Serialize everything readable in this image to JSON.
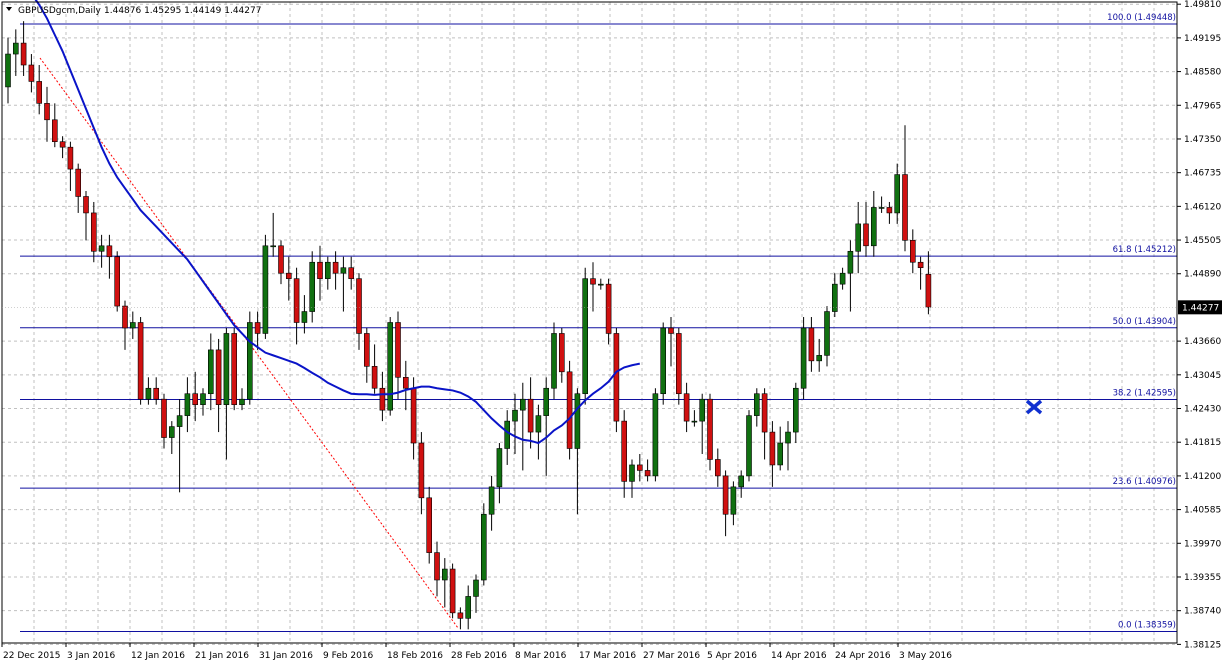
{
  "chart_data": {
    "type": "candlestick",
    "header": {
      "symbol": "GBPUSDgcm,Daily",
      "ohlc": "1.44876 1.45295 1.44149 1.44277"
    },
    "y_range": [
      1.3815,
      1.4985
    ],
    "y_ticks": [
      "1.49810",
      "1.49195",
      "1.48580",
      "1.47965",
      "1.47350",
      "1.46735",
      "1.46120",
      "1.45505",
      "1.44890",
      "1.43660",
      "1.43045",
      "1.42430",
      "1.41815",
      "1.41200",
      "1.40585",
      "1.39970",
      "1.39355",
      "1.38740",
      "1.38125"
    ],
    "current_price_label": "1.44277",
    "x_labels": [
      "22 Dec 2015",
      "3 Jan 2016",
      "12 Jan 2016",
      "21 Jan 2016",
      "31 Jan 2016",
      "9 Feb 2016",
      "18 Feb 2016",
      "28 Feb 2016",
      "8 Mar 2016",
      "17 Mar 2016",
      "27 Mar 2016",
      "5 Apr 2016",
      "14 Apr 2016",
      "24 Apr 2016",
      "3 May 2016"
    ],
    "fib_levels": [
      {
        "label": "100.0  (1.49448)",
        "price": 1.49448
      },
      {
        "label": "61.8  (1.45212)",
        "price": 1.45212
      },
      {
        "label": "50.0  (1.43904)",
        "price": 1.43904
      },
      {
        "label": "38.2  (1.42595)",
        "price": 1.42595
      },
      {
        "label": "23.6  (1.40976)",
        "price": 1.40976
      },
      {
        "label": "0.0  (1.38359)",
        "price": 1.38359
      }
    ],
    "candles": [
      {
        "o": 1.483,
        "h": 1.492,
        "l": 1.48,
        "c": 1.489
      },
      {
        "o": 1.489,
        "h": 1.4935,
        "l": 1.485,
        "c": 1.491
      },
      {
        "o": 1.491,
        "h": 1.495,
        "l": 1.485,
        "c": 1.487
      },
      {
        "o": 1.487,
        "h": 1.489,
        "l": 1.482,
        "c": 1.484
      },
      {
        "o": 1.484,
        "h": 1.487,
        "l": 1.478,
        "c": 1.48
      },
      {
        "o": 1.48,
        "h": 1.483,
        "l": 1.473,
        "c": 1.477
      },
      {
        "o": 1.477,
        "h": 1.48,
        "l": 1.472,
        "c": 1.473
      },
      {
        "o": 1.473,
        "h": 1.474,
        "l": 1.47,
        "c": 1.472
      },
      {
        "o": 1.472,
        "h": 1.473,
        "l": 1.464,
        "c": 1.468
      },
      {
        "o": 1.468,
        "h": 1.469,
        "l": 1.46,
        "c": 1.463
      },
      {
        "o": 1.463,
        "h": 1.464,
        "l": 1.455,
        "c": 1.46
      },
      {
        "o": 1.46,
        "h": 1.462,
        "l": 1.451,
        "c": 1.453
      },
      {
        "o": 1.453,
        "h": 1.456,
        "l": 1.45,
        "c": 1.454
      },
      {
        "o": 1.454,
        "h": 1.456,
        "l": 1.448,
        "c": 1.452
      },
      {
        "o": 1.452,
        "h": 1.453,
        "l": 1.442,
        "c": 1.443
      },
      {
        "o": 1.443,
        "h": 1.444,
        "l": 1.435,
        "c": 1.439
      },
      {
        "o": 1.439,
        "h": 1.442,
        "l": 1.437,
        "c": 1.44
      },
      {
        "o": 1.44,
        "h": 1.441,
        "l": 1.425,
        "c": 1.426
      },
      {
        "o": 1.426,
        "h": 1.43,
        "l": 1.425,
        "c": 1.428
      },
      {
        "o": 1.428,
        "h": 1.43,
        "l": 1.425,
        "c": 1.426
      },
      {
        "o": 1.426,
        "h": 1.427,
        "l": 1.417,
        "c": 1.419
      },
      {
        "o": 1.419,
        "h": 1.422,
        "l": 1.416,
        "c": 1.421
      },
      {
        "o": 1.421,
        "h": 1.426,
        "l": 1.409,
        "c": 1.423
      },
      {
        "o": 1.423,
        "h": 1.43,
        "l": 1.42,
        "c": 1.427
      },
      {
        "o": 1.427,
        "h": 1.431,
        "l": 1.422,
        "c": 1.425
      },
      {
        "o": 1.425,
        "h": 1.428,
        "l": 1.423,
        "c": 1.427
      },
      {
        "o": 1.427,
        "h": 1.438,
        "l": 1.424,
        "c": 1.435
      },
      {
        "o": 1.435,
        "h": 1.437,
        "l": 1.42,
        "c": 1.425
      },
      {
        "o": 1.425,
        "h": 1.439,
        "l": 1.415,
        "c": 1.438
      },
      {
        "o": 1.438,
        "h": 1.439,
        "l": 1.424,
        "c": 1.425
      },
      {
        "o": 1.425,
        "h": 1.428,
        "l": 1.424,
        "c": 1.426
      },
      {
        "o": 1.426,
        "h": 1.442,
        "l": 1.425,
        "c": 1.44
      },
      {
        "o": 1.44,
        "h": 1.442,
        "l": 1.435,
        "c": 1.438
      },
      {
        "o": 1.438,
        "h": 1.456,
        "l": 1.437,
        "c": 1.454
      },
      {
        "o": 1.454,
        "h": 1.46,
        "l": 1.452,
        "c": 1.454
      },
      {
        "o": 1.454,
        "h": 1.455,
        "l": 1.447,
        "c": 1.449
      },
      {
        "o": 1.449,
        "h": 1.452,
        "l": 1.444,
        "c": 1.448
      },
      {
        "o": 1.448,
        "h": 1.45,
        "l": 1.436,
        "c": 1.44
      },
      {
        "o": 1.44,
        "h": 1.445,
        "l": 1.438,
        "c": 1.442
      },
      {
        "o": 1.442,
        "h": 1.453,
        "l": 1.44,
        "c": 1.451
      },
      {
        "o": 1.451,
        "h": 1.454,
        "l": 1.444,
        "c": 1.448
      },
      {
        "o": 1.448,
        "h": 1.452,
        "l": 1.446,
        "c": 1.451
      },
      {
        "o": 1.451,
        "h": 1.453,
        "l": 1.446,
        "c": 1.449
      },
      {
        "o": 1.449,
        "h": 1.452,
        "l": 1.442,
        "c": 1.45
      },
      {
        "o": 1.45,
        "h": 1.452,
        "l": 1.446,
        "c": 1.448
      },
      {
        "o": 1.448,
        "h": 1.449,
        "l": 1.435,
        "c": 1.438
      },
      {
        "o": 1.438,
        "h": 1.439,
        "l": 1.429,
        "c": 1.432
      },
      {
        "o": 1.432,
        "h": 1.436,
        "l": 1.427,
        "c": 1.428
      },
      {
        "o": 1.428,
        "h": 1.431,
        "l": 1.422,
        "c": 1.424
      },
      {
        "o": 1.424,
        "h": 1.441,
        "l": 1.423,
        "c": 1.44
      },
      {
        "o": 1.44,
        "h": 1.442,
        "l": 1.426,
        "c": 1.43
      },
      {
        "o": 1.43,
        "h": 1.433,
        "l": 1.424,
        "c": 1.428
      },
      {
        "o": 1.428,
        "h": 1.43,
        "l": 1.415,
        "c": 1.418
      },
      {
        "o": 1.418,
        "h": 1.42,
        "l": 1.405,
        "c": 1.408
      },
      {
        "o": 1.408,
        "h": 1.41,
        "l": 1.396,
        "c": 1.398
      },
      {
        "o": 1.398,
        "h": 1.4,
        "l": 1.39,
        "c": 1.393
      },
      {
        "o": 1.393,
        "h": 1.397,
        "l": 1.388,
        "c": 1.395
      },
      {
        "o": 1.395,
        "h": 1.396,
        "l": 1.386,
        "c": 1.387
      },
      {
        "o": 1.387,
        "h": 1.388,
        "l": 1.384,
        "c": 1.386
      },
      {
        "o": 1.386,
        "h": 1.392,
        "l": 1.384,
        "c": 1.39
      },
      {
        "o": 1.39,
        "h": 1.394,
        "l": 1.387,
        "c": 1.393
      },
      {
        "o": 1.393,
        "h": 1.407,
        "l": 1.392,
        "c": 1.405
      },
      {
        "o": 1.405,
        "h": 1.412,
        "l": 1.402,
        "c": 1.41
      },
      {
        "o": 1.41,
        "h": 1.418,
        "l": 1.407,
        "c": 1.417
      },
      {
        "o": 1.417,
        "h": 1.424,
        "l": 1.414,
        "c": 1.422
      },
      {
        "o": 1.422,
        "h": 1.427,
        "l": 1.416,
        "c": 1.424
      },
      {
        "o": 1.424,
        "h": 1.429,
        "l": 1.413,
        "c": 1.426
      },
      {
        "o": 1.426,
        "h": 1.43,
        "l": 1.417,
        "c": 1.42
      },
      {
        "o": 1.42,
        "h": 1.425,
        "l": 1.415,
        "c": 1.423
      },
      {
        "o": 1.423,
        "h": 1.43,
        "l": 1.412,
        "c": 1.428
      },
      {
        "o": 1.428,
        "h": 1.44,
        "l": 1.426,
        "c": 1.438
      },
      {
        "o": 1.438,
        "h": 1.439,
        "l": 1.429,
        "c": 1.431
      },
      {
        "o": 1.431,
        "h": 1.433,
        "l": 1.415,
        "c": 1.417
      },
      {
        "o": 1.417,
        "h": 1.428,
        "l": 1.405,
        "c": 1.427
      },
      {
        "o": 1.427,
        "h": 1.45,
        "l": 1.425,
        "c": 1.448
      },
      {
        "o": 1.448,
        "h": 1.451,
        "l": 1.442,
        "c": 1.447
      },
      {
        "o": 1.447,
        "h": 1.448,
        "l": 1.446,
        "c": 1.447
      },
      {
        "o": 1.447,
        "h": 1.448,
        "l": 1.436,
        "c": 1.438
      },
      {
        "o": 1.438,
        "h": 1.439,
        "l": 1.42,
        "c": 1.422
      },
      {
        "o": 1.422,
        "h": 1.424,
        "l": 1.408,
        "c": 1.411
      },
      {
        "o": 1.411,
        "h": 1.415,
        "l": 1.408,
        "c": 1.414
      },
      {
        "o": 1.414,
        "h": 1.416,
        "l": 1.411,
        "c": 1.413
      },
      {
        "o": 1.413,
        "h": 1.415,
        "l": 1.411,
        "c": 1.412
      },
      {
        "o": 1.412,
        "h": 1.428,
        "l": 1.411,
        "c": 1.427
      },
      {
        "o": 1.427,
        "h": 1.44,
        "l": 1.425,
        "c": 1.439
      },
      {
        "o": 1.439,
        "h": 1.441,
        "l": 1.432,
        "c": 1.438
      },
      {
        "o": 1.438,
        "h": 1.439,
        "l": 1.425,
        "c": 1.427
      },
      {
        "o": 1.427,
        "h": 1.429,
        "l": 1.42,
        "c": 1.422
      },
      {
        "o": 1.422,
        "h": 1.424,
        "l": 1.421,
        "c": 1.422
      },
      {
        "o": 1.422,
        "h": 1.427,
        "l": 1.416,
        "c": 1.426
      },
      {
        "o": 1.426,
        "h": 1.427,
        "l": 1.413,
        "c": 1.415
      },
      {
        "o": 1.415,
        "h": 1.417,
        "l": 1.41,
        "c": 1.412
      },
      {
        "o": 1.412,
        "h": 1.413,
        "l": 1.401,
        "c": 1.405
      },
      {
        "o": 1.405,
        "h": 1.411,
        "l": 1.403,
        "c": 1.41
      },
      {
        "o": 1.41,
        "h": 1.413,
        "l": 1.408,
        "c": 1.412
      },
      {
        "o": 1.412,
        "h": 1.424,
        "l": 1.411,
        "c": 1.423
      },
      {
        "o": 1.423,
        "h": 1.428,
        "l": 1.421,
        "c": 1.427
      },
      {
        "o": 1.427,
        "h": 1.428,
        "l": 1.415,
        "c": 1.42
      },
      {
        "o": 1.42,
        "h": 1.422,
        "l": 1.41,
        "c": 1.414
      },
      {
        "o": 1.414,
        "h": 1.421,
        "l": 1.413,
        "c": 1.418
      },
      {
        "o": 1.418,
        "h": 1.422,
        "l": 1.413,
        "c": 1.42
      },
      {
        "o": 1.42,
        "h": 1.429,
        "l": 1.418,
        "c": 1.428
      },
      {
        "o": 1.428,
        "h": 1.441,
        "l": 1.426,
        "c": 1.439
      },
      {
        "o": 1.439,
        "h": 1.441,
        "l": 1.431,
        "c": 1.433
      },
      {
        "o": 1.433,
        "h": 1.437,
        "l": 1.431,
        "c": 1.434
      },
      {
        "o": 1.434,
        "h": 1.443,
        "l": 1.432,
        "c": 1.442
      },
      {
        "o": 1.442,
        "h": 1.449,
        "l": 1.441,
        "c": 1.447
      },
      {
        "o": 1.447,
        "h": 1.45,
        "l": 1.446,
        "c": 1.449
      },
      {
        "o": 1.449,
        "h": 1.455,
        "l": 1.442,
        "c": 1.453
      },
      {
        "o": 1.453,
        "h": 1.462,
        "l": 1.449,
        "c": 1.458
      },
      {
        "o": 1.458,
        "h": 1.462,
        "l": 1.452,
        "c": 1.454
      },
      {
        "o": 1.454,
        "h": 1.464,
        "l": 1.452,
        "c": 1.461
      },
      {
        "o": 1.461,
        "h": 1.463,
        "l": 1.46,
        "c": 1.461
      },
      {
        "o": 1.461,
        "h": 1.462,
        "l": 1.458,
        "c": 1.46
      },
      {
        "o": 1.46,
        "h": 1.469,
        "l": 1.458,
        "c": 1.467
      },
      {
        "o": 1.467,
        "h": 1.476,
        "l": 1.453,
        "c": 1.455
      },
      {
        "o": 1.455,
        "h": 1.457,
        "l": 1.449,
        "c": 1.451
      },
      {
        "o": 1.451,
        "h": 1.452,
        "l": 1.446,
        "c": 1.45
      },
      {
        "o": 1.4488,
        "h": 1.453,
        "l": 1.4415,
        "c": 1.4428
      }
    ],
    "ma": [
      1.503,
      1.502,
      1.501,
      1.5,
      1.498,
      1.4955,
      1.4925,
      1.4895,
      1.486,
      1.4825,
      1.479,
      1.4755,
      1.472,
      1.469,
      1.4665,
      1.4645,
      1.4625,
      1.4605,
      1.459,
      1.4575,
      1.456,
      1.4545,
      1.453,
      1.4515,
      1.4495,
      1.4475,
      1.4455,
      1.4435,
      1.4415,
      1.4395,
      1.438,
      1.4365,
      1.4355,
      1.4345,
      1.434,
      1.4335,
      1.433,
      1.4325,
      1.4317,
      1.4308,
      1.43,
      1.429,
      1.4283,
      1.4276,
      1.427,
      1.4269,
      1.4269,
      1.4268,
      1.4269,
      1.4269,
      1.4272,
      1.4277,
      1.428,
      1.4283,
      1.4283,
      1.428,
      1.4278,
      1.4276,
      1.4272,
      1.4265,
      1.4255,
      1.424,
      1.4225,
      1.4212,
      1.42,
      1.4192,
      1.4186,
      1.4184,
      1.418,
      1.419,
      1.4203,
      1.4212,
      1.4225,
      1.4243,
      1.4258,
      1.427,
      1.428,
      1.4292,
      1.431,
      1.4318,
      1.4322,
      1.4325
    ]
  }
}
